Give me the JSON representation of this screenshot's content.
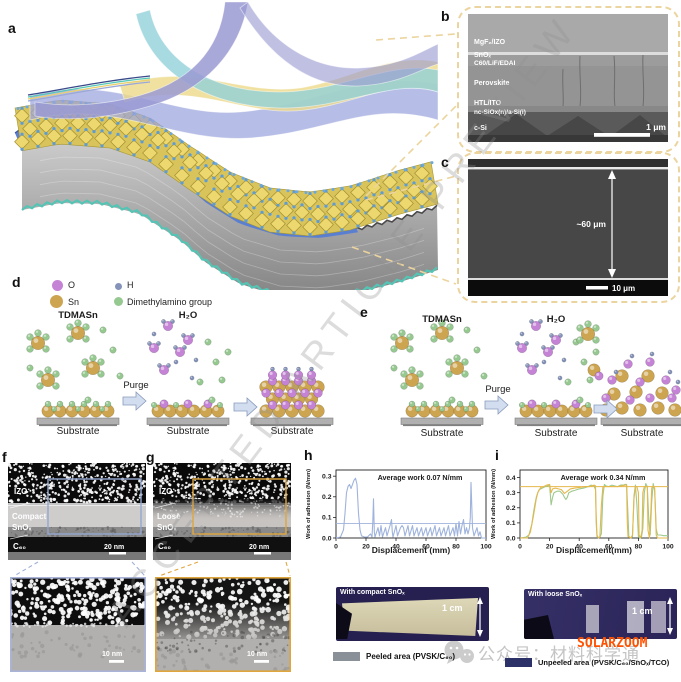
{
  "figure": {
    "watermark_diagonal": "ACCEPTED ARTICLE PREVIEW",
    "watermark_wechat": "公众号：材料科学通",
    "watermark_brand": "SOLARZOOM"
  },
  "panel_a": {
    "label": "a"
  },
  "panel_b": {
    "label": "b",
    "layer_labels": [
      "MgF₂/IZO",
      "SnOₓ",
      "C60/LiF/EDAI",
      "Perovskite",
      "HTL/ITO",
      "nc-SiOx(n)/a-Si(i)",
      "c-Si"
    ],
    "scale_bar": "1 μm"
  },
  "panel_c": {
    "label": "c",
    "thickness_label": "~60 μm",
    "scale_bar": "10 μm"
  },
  "panel_d": {
    "label": "d",
    "legend": [
      {
        "label": "O",
        "color": "#c583d6"
      },
      {
        "label": "H",
        "color": "#8593bb"
      },
      {
        "label": "Sn",
        "color": "#cda551"
      },
      {
        "label": "Dimethylamino group",
        "color": "#96c990"
      }
    ],
    "precursor": "TDMASn",
    "water": "H₂O",
    "purge": "Purge",
    "substrate": "Substrate"
  },
  "panel_e": {
    "label": "e",
    "precursor": "TDMASn",
    "water": "H₂O",
    "purge": "Purge",
    "substrate": "Substrate"
  },
  "panel_f": {
    "label": "f",
    "izo": "IZO",
    "layer_line1": "Compact",
    "layer_line2": "SnOₓ",
    "c60": "C₆₀",
    "scale_top": "20 nm",
    "scale_crop": "10 nm"
  },
  "panel_g": {
    "label": "g",
    "izo": "IZO",
    "layer_line1": "Loose",
    "layer_line2": "SnOₓ",
    "c60": "C₆₀",
    "scale_top": "20 nm",
    "scale_crop": "10 nm"
  },
  "panel_h": {
    "label": "h",
    "annotation": "Average work 0.07 N/mm",
    "xlabel": "Displacement (mm)",
    "ylabel": "Work of adhesion (N/mm)"
  },
  "panel_i": {
    "label": "i",
    "annotation": "Average work 0.34 N/mm",
    "xlabel": "Displacement(mm)",
    "ylabel": "Work of adhesion (N/mm)"
  },
  "photo_left": {
    "title": "With compact SnOₓ",
    "scale": "1 cm"
  },
  "photo_right": {
    "title": "With loose SnOₓ",
    "scale": "1 cm"
  },
  "legend_bottom": {
    "left": {
      "label": "Peeled area (PVSK/C₆₀)",
      "color": "#8a9097"
    },
    "right": {
      "label": "Unpeeled area (PVSK/C₆₀/SnOₓ/TCO)",
      "color": "#2c3168"
    }
  },
  "colors": {
    "accent_dash": "#ecd49e",
    "blue_box": "#93a7d2",
    "orange_box": "#dfa63e",
    "curve_h": "#9fb3dc",
    "curve_i_green": "#9ec98c",
    "curve_i_orange": "#e6b84c",
    "atom_o": "#c583d6",
    "atom_h": "#8593bb",
    "atom_sn": "#cda551",
    "atom_dma": "#96c990"
  },
  "chart_data": [
    {
      "type": "line",
      "panel": "h",
      "xlabel": "Displacement (mm)",
      "ylabel": "Work of adhesion (N/mm)",
      "annotation": "Average work 0.07 N/mm",
      "xlim": [
        0,
        100
      ],
      "ylim": [
        0,
        0.33
      ],
      "xticks": [
        0,
        20,
        40,
        60,
        80,
        100
      ],
      "yticks": [
        0.0,
        0.1,
        0.2,
        0.3
      ],
      "avg_line": 0.07,
      "avg_line_color": "#9fb3dc",
      "series": [
        {
          "name": "with compact SnOx",
          "color": "#9fb3dc",
          "points": [
            [
              0,
              0
            ],
            [
              3,
              0.005
            ],
            [
              5,
              0.04
            ],
            [
              6,
              0.12
            ],
            [
              7,
              0.22
            ],
            [
              8,
              0.25
            ],
            [
              9,
              0.26
            ],
            [
              10,
              0.24
            ],
            [
              11,
              0.26
            ],
            [
              12,
              0.28
            ],
            [
              13,
              0.29
            ],
            [
              14,
              0.26
            ],
            [
              15,
              0.12
            ],
            [
              16,
              0.04
            ],
            [
              17,
              0.01
            ],
            [
              19,
              0.005
            ],
            [
              21,
              0.005
            ],
            [
              23,
              0.02
            ],
            [
              24,
              0.005
            ],
            [
              24.5,
              0.08
            ],
            [
              25,
              0.19
            ],
            [
              25.5,
              0.03
            ],
            [
              26,
              0.005
            ],
            [
              28,
              0.05
            ],
            [
              29,
              0.01
            ],
            [
              30,
              0.06
            ],
            [
              31,
              0.005
            ],
            [
              33,
              0.05
            ],
            [
              34,
              0.01
            ],
            [
              36,
              0.06
            ],
            [
              37,
              0.09
            ],
            [
              37.5,
              0.03
            ],
            [
              38,
              0.005
            ],
            [
              40,
              0.06
            ],
            [
              41,
              0.01
            ],
            [
              43,
              0.05
            ],
            [
              44,
              0.06
            ],
            [
              45,
              0.05
            ],
            [
              46,
              0.01
            ],
            [
              48,
              0.06
            ],
            [
              49,
              0.01
            ],
            [
              51,
              0.06
            ],
            [
              52,
              0.01
            ],
            [
              54,
              0.05
            ],
            [
              55,
              0.01
            ],
            [
              57,
              0.05
            ],
            [
              58,
              0.01
            ],
            [
              60,
              0.05
            ],
            [
              61,
              0.01
            ],
            [
              63,
              0.05
            ],
            [
              64,
              0.01
            ],
            [
              66,
              0.06
            ],
            [
              67,
              0.01
            ],
            [
              69,
              0.05
            ],
            [
              70,
              0.01
            ],
            [
              72,
              0.05
            ],
            [
              73,
              0.01
            ],
            [
              75,
              0.06
            ],
            [
              76,
              0.01
            ],
            [
              78,
              0.05
            ],
            [
              79,
              0.01
            ],
            [
              80,
              0.07
            ],
            [
              81,
              0.01
            ],
            [
              82,
              0.08
            ],
            [
              83,
              0.02
            ],
            [
              84,
              0.06
            ],
            [
              85,
              0.09
            ],
            [
              86,
              0.02
            ],
            [
              87,
              0.05
            ],
            [
              88,
              0.02
            ],
            [
              89,
              0.05
            ],
            [
              89.5,
              0.1
            ],
            [
              90,
              0.27
            ],
            [
              91,
              0.05
            ],
            [
              92,
              0.01
            ],
            [
              94,
              0.05
            ],
            [
              95,
              0.01
            ],
            [
              96,
              0.03
            ],
            [
              97,
              0.0
            ],
            [
              100,
              0.0
            ]
          ]
        }
      ]
    },
    {
      "type": "line",
      "panel": "i",
      "xlabel": "Displacement(mm)",
      "ylabel": "Work of adhesion (N/mm)",
      "annotation": "Average work 0.34 N/mm",
      "xlim": [
        0,
        100
      ],
      "ylim": [
        0,
        0.45
      ],
      "xticks": [
        0,
        20,
        40,
        60,
        80,
        100
      ],
      "yticks": [
        0.0,
        0.1,
        0.2,
        0.3,
        0.4
      ],
      "avg_line": 0.34,
      "avg_line_color": "#e6b84c",
      "series": [
        {
          "name": "green",
          "color": "#9ec98c",
          "points": [
            [
              0,
              0
            ],
            [
              4,
              0.005
            ],
            [
              6,
              0.02
            ],
            [
              8,
              0.09
            ],
            [
              9,
              0.16
            ],
            [
              10,
              0.22
            ],
            [
              11,
              0.27
            ],
            [
              12,
              0.3
            ],
            [
              13,
              0.32
            ],
            [
              15,
              0.33
            ],
            [
              17,
              0.34
            ],
            [
              19,
              0.345
            ],
            [
              20,
              0.35
            ],
            [
              21,
              0.22
            ],
            [
              22,
              0.27
            ],
            [
              23,
              0.3
            ],
            [
              25,
              0.31
            ],
            [
              27,
              0.31
            ],
            [
              29,
              0.29
            ],
            [
              30,
              0.27
            ],
            [
              31,
              0.255
            ],
            [
              32,
              0.27
            ],
            [
              33,
              0.3
            ],
            [
              35,
              0.31
            ],
            [
              37,
              0.315
            ],
            [
              40,
              0.325
            ],
            [
              43,
              0.33
            ],
            [
              46,
              0.34
            ],
            [
              48,
              0.35
            ],
            [
              50,
              0.345
            ],
            [
              51,
              0.32
            ],
            [
              51.5,
              0.1
            ],
            [
              52,
              0.01
            ],
            [
              53,
              0.0
            ],
            [
              54,
              0.005
            ],
            [
              55,
              0.03
            ],
            [
              56,
              0.28
            ],
            [
              57,
              0.355
            ],
            [
              58,
              0.345
            ],
            [
              60,
              0.34
            ],
            [
              62,
              0.35
            ],
            [
              64,
              0.345
            ],
            [
              66,
              0.34
            ],
            [
              68,
              0.35
            ],
            [
              70,
              0.35
            ],
            [
              71,
              0.355
            ],
            [
              72,
              0.355
            ],
            [
              73,
              0.15
            ],
            [
              73.5,
              0.01
            ],
            [
              75,
              0.0
            ],
            [
              76,
              0.01
            ],
            [
              77,
              0.28
            ],
            [
              78,
              0.35
            ],
            [
              79,
              0.22
            ],
            [
              80,
              0.01
            ],
            [
              81,
              0.0
            ],
            [
              82,
              0.005
            ],
            [
              83,
              0.06
            ],
            [
              84,
              0.3
            ],
            [
              85,
              0.36
            ],
            [
              86,
              0.34
            ],
            [
              87,
              0.12
            ],
            [
              88,
              0.02
            ],
            [
              89,
              0.24
            ],
            [
              90,
              0.36
            ],
            [
              91,
              0.31
            ],
            [
              92,
              0.06
            ],
            [
              93,
              0.02
            ],
            [
              95,
              0.02
            ],
            [
              97,
              0.015
            ],
            [
              100,
              0.015
            ]
          ]
        },
        {
          "name": "orange",
          "color": "#e6b84c",
          "points": [
            [
              0,
              0
            ],
            [
              5,
              0.0
            ],
            [
              7,
              0.04
            ],
            [
              9,
              0.14
            ],
            [
              10,
              0.2
            ],
            [
              11,
              0.26
            ],
            [
              12,
              0.3
            ],
            [
              14,
              0.335
            ],
            [
              16,
              0.34
            ],
            [
              18,
              0.35
            ],
            [
              20,
              0.355
            ],
            [
              21,
              0.3
            ],
            [
              22,
              0.325
            ],
            [
              24,
              0.33
            ],
            [
              26,
              0.325
            ],
            [
              28,
              0.32
            ],
            [
              30,
              0.295
            ],
            [
              32,
              0.31
            ],
            [
              34,
              0.325
            ],
            [
              37,
              0.33
            ],
            [
              40,
              0.335
            ],
            [
              44,
              0.34
            ],
            [
              47,
              0.34
            ],
            [
              50,
              0.35
            ],
            [
              51,
              0.345
            ],
            [
              51.5,
              0.15
            ],
            [
              52,
              0.02
            ],
            [
              53,
              0.0
            ],
            [
              54,
              0.01
            ],
            [
              55,
              0.22
            ],
            [
              56,
              0.34
            ],
            [
              58,
              0.34
            ],
            [
              60,
              0.34
            ],
            [
              63,
              0.34
            ],
            [
              66,
              0.34
            ],
            [
              69,
              0.345
            ],
            [
              71,
              0.35
            ],
            [
              72,
              0.35
            ],
            [
              72.5,
              0.1
            ],
            [
              73,
              0.01
            ],
            [
              75,
              0.0
            ],
            [
              76,
              0.02
            ],
            [
              77,
              0.26
            ],
            [
              78,
              0.34
            ],
            [
              79,
              0.34
            ],
            [
              80,
              0.3
            ],
            [
              80.5,
              0.02
            ],
            [
              81.5,
              0.0
            ],
            [
              82.5,
              0.05
            ],
            [
              83,
              0.3
            ],
            [
              84,
              0.34
            ],
            [
              86,
              0.34
            ],
            [
              86.5,
              0.05
            ],
            [
              87.5,
              0.0
            ],
            [
              88.5,
              0.2
            ],
            [
              89,
              0.33
            ],
            [
              90,
              0.345
            ],
            [
              91,
              0.33
            ],
            [
              92,
              0.02
            ],
            [
              93,
              0.0
            ],
            [
              100,
              0.0
            ]
          ]
        }
      ]
    }
  ]
}
